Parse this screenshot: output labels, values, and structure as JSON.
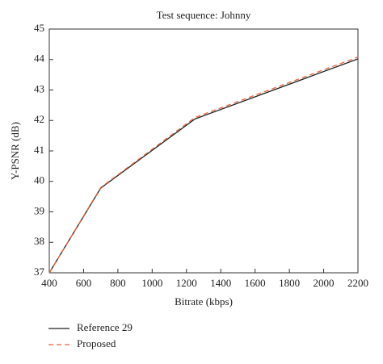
{
  "chart_data": {
    "type": "line",
    "title": "Test sequence: Johnny",
    "x_label": "Bitrate (kbps)",
    "y_label": "Y-PSNR (dB)",
    "x": [
      400,
      700,
      1250,
      2200
    ],
    "series": [
      {
        "name": "Reference 29",
        "color": "#222222",
        "dash": false,
        "values": [
          37.0,
          39.78,
          42.05,
          44.02
        ]
      },
      {
        "name": "Proposed",
        "color": "#e8663d",
        "dash": true,
        "values": [
          37.0,
          39.8,
          42.1,
          44.08
        ]
      }
    ],
    "xlim": [
      400,
      2200
    ],
    "xticks": [
      400,
      600,
      800,
      1000,
      1200,
      1400,
      1600,
      1800,
      2000,
      2200
    ],
    "ylim": [
      37,
      45
    ],
    "yticks": [
      37,
      38,
      39,
      40,
      41,
      42,
      43,
      44,
      45
    ],
    "legend": "below"
  }
}
